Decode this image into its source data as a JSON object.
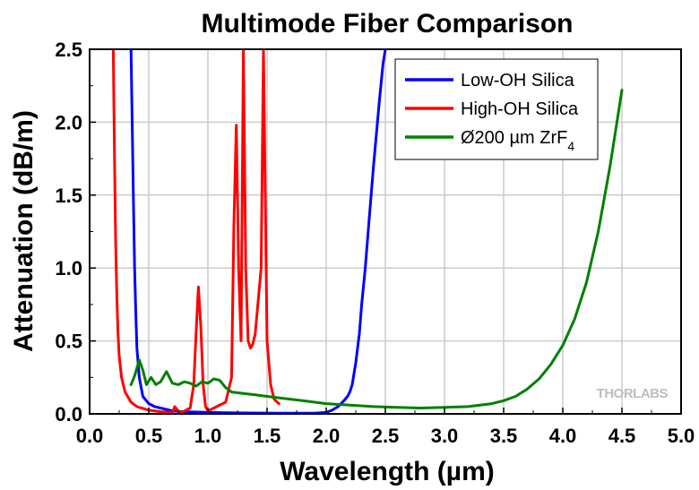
{
  "chart_data": {
    "type": "line",
    "title": "Multimode Fiber Comparison",
    "xlabel": "Wavelength (µm)",
    "ylabel": "Attenuation (dB/m)",
    "xlim": [
      0.0,
      5.0
    ],
    "ylim": [
      0.0,
      2.5
    ],
    "xticks": [
      "0.0",
      "0.5",
      "1.0",
      "1.5",
      "2.0",
      "2.5",
      "3.0",
      "3.5",
      "4.0",
      "4.5",
      "5.0"
    ],
    "yticks": [
      "0.0",
      "0.5",
      "1.0",
      "1.5",
      "2.0",
      "2.5"
    ],
    "grid": true,
    "legend_position": "top-right",
    "watermark": "THORLABS",
    "series": [
      {
        "name": "Low-OH Silica",
        "color": "#0000ff",
        "x": [
          0.35,
          0.36,
          0.37,
          0.38,
          0.39,
          0.4,
          0.42,
          0.45,
          0.5,
          0.55,
          0.6,
          0.7,
          0.8,
          1.0,
          1.3,
          1.6,
          1.9,
          2.0,
          2.05,
          2.1,
          2.15,
          2.18,
          2.2,
          2.22,
          2.25,
          2.28,
          2.3,
          2.33,
          2.36,
          2.4,
          2.45,
          2.48,
          2.5
        ],
        "y": [
          2.5,
          2.0,
          1.5,
          1.0,
          0.7,
          0.45,
          0.25,
          0.12,
          0.07,
          0.05,
          0.04,
          0.02,
          0.015,
          0.01,
          0.006,
          0.005,
          0.005,
          0.01,
          0.025,
          0.05,
          0.09,
          0.12,
          0.15,
          0.2,
          0.35,
          0.55,
          0.75,
          1.0,
          1.3,
          1.7,
          2.15,
          2.4,
          2.5
        ]
      },
      {
        "name": "High-OH Silica",
        "color": "#ff0000",
        "x": [
          0.2,
          0.21,
          0.22,
          0.23,
          0.24,
          0.25,
          0.27,
          0.3,
          0.35,
          0.4,
          0.5,
          0.6,
          0.7,
          0.72,
          0.75,
          0.78,
          0.85,
          0.88,
          0.9,
          0.92,
          0.94,
          0.96,
          0.98,
          1.0,
          1.05,
          1.1,
          1.15,
          1.2,
          1.22,
          1.24,
          1.26,
          1.28,
          1.3,
          1.32,
          1.34,
          1.36,
          1.38,
          1.4,
          1.45,
          1.47,
          1.5,
          1.53,
          1.56,
          1.6
        ],
        "y": [
          2.5,
          1.8,
          1.2,
          0.8,
          0.55,
          0.4,
          0.25,
          0.15,
          0.08,
          0.05,
          0.025,
          0.015,
          0.01,
          0.05,
          0.02,
          0.01,
          0.04,
          0.2,
          0.55,
          0.87,
          0.6,
          0.2,
          0.05,
          0.02,
          0.04,
          0.06,
          0.08,
          0.25,
          1.3,
          1.98,
          1.0,
          0.5,
          2.5,
          1.0,
          0.5,
          0.45,
          0.48,
          0.55,
          1.0,
          2.5,
          0.5,
          0.2,
          0.1,
          0.07
        ]
      },
      {
        "name": "Ø200 µm ZrF4",
        "color": "#008000",
        "x": [
          0.35,
          0.38,
          0.42,
          0.45,
          0.48,
          0.52,
          0.56,
          0.6,
          0.65,
          0.7,
          0.75,
          0.8,
          0.85,
          0.9,
          0.95,
          1.0,
          1.05,
          1.1,
          1.15,
          1.2,
          1.3,
          1.4,
          1.5,
          1.6,
          1.8,
          2.0,
          2.2,
          2.4,
          2.6,
          2.8,
          3.0,
          3.2,
          3.4,
          3.5,
          3.6,
          3.7,
          3.8,
          3.9,
          4.0,
          4.1,
          4.2,
          4.3,
          4.4,
          4.5
        ],
        "y": [
          0.2,
          0.26,
          0.37,
          0.3,
          0.2,
          0.25,
          0.2,
          0.22,
          0.29,
          0.21,
          0.2,
          0.22,
          0.21,
          0.19,
          0.22,
          0.21,
          0.24,
          0.23,
          0.18,
          0.15,
          0.14,
          0.13,
          0.12,
          0.11,
          0.09,
          0.07,
          0.06,
          0.05,
          0.045,
          0.04,
          0.045,
          0.05,
          0.07,
          0.09,
          0.12,
          0.17,
          0.24,
          0.34,
          0.47,
          0.65,
          0.9,
          1.25,
          1.7,
          2.22
        ]
      }
    ]
  }
}
